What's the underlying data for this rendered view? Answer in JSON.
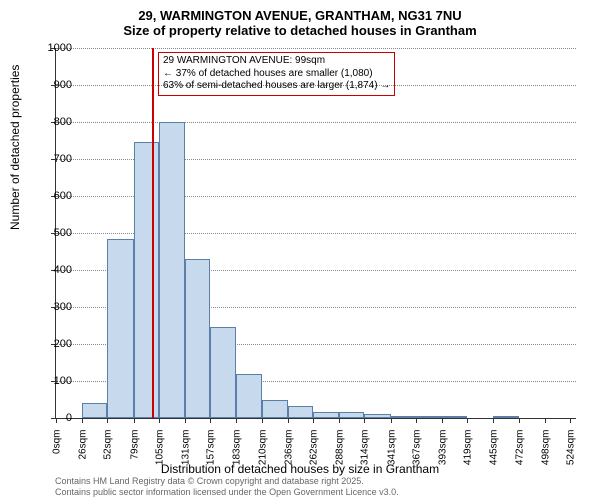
{
  "title_line1": "29, WARMINGTON AVENUE, GRANTHAM, NG31 7NU",
  "title_line2": "Size of property relative to detached houses in Grantham",
  "y_axis_title": "Number of detached properties",
  "x_axis_title": "Distribution of detached houses by size in Grantham",
  "footer_line1": "Contains HM Land Registry data © Crown copyright and database right 2025.",
  "footer_line2": "Contains public sector information licensed under the Open Government Licence v3.0.",
  "chart": {
    "type": "histogram",
    "ylim": [
      0,
      1000
    ],
    "ytick_step": 100,
    "bar_fill": "#c7d9ec",
    "bar_border": "#5b7fa8",
    "grid_color": "#888888",
    "reference_line_color": "#cc0000",
    "reference_x_value": 99,
    "x_min": 0,
    "x_max": 530,
    "xticks": [
      0,
      26,
      52,
      79,
      105,
      131,
      157,
      183,
      210,
      236,
      262,
      288,
      314,
      341,
      367,
      393,
      419,
      445,
      472,
      498,
      524
    ],
    "xtick_labels": [
      "0sqm",
      "26sqm",
      "52sqm",
      "79sqm",
      "105sqm",
      "131sqm",
      "157sqm",
      "183sqm",
      "210sqm",
      "236sqm",
      "262sqm",
      "288sqm",
      "314sqm",
      "341sqm",
      "367sqm",
      "393sqm",
      "419sqm",
      "445sqm",
      "472sqm",
      "498sqm",
      "524sqm"
    ],
    "bars": [
      {
        "x_start": 0,
        "x_end": 26,
        "value": 0
      },
      {
        "x_start": 26,
        "x_end": 52,
        "value": 40
      },
      {
        "x_start": 52,
        "x_end": 79,
        "value": 485
      },
      {
        "x_start": 79,
        "x_end": 105,
        "value": 745
      },
      {
        "x_start": 105,
        "x_end": 131,
        "value": 800
      },
      {
        "x_start": 131,
        "x_end": 157,
        "value": 430
      },
      {
        "x_start": 157,
        "x_end": 183,
        "value": 245
      },
      {
        "x_start": 183,
        "x_end": 210,
        "value": 120
      },
      {
        "x_start": 210,
        "x_end": 236,
        "value": 50
      },
      {
        "x_start": 236,
        "x_end": 262,
        "value": 32
      },
      {
        "x_start": 262,
        "x_end": 288,
        "value": 15
      },
      {
        "x_start": 288,
        "x_end": 314,
        "value": 15
      },
      {
        "x_start": 314,
        "x_end": 341,
        "value": 12
      },
      {
        "x_start": 341,
        "x_end": 367,
        "value": 3
      },
      {
        "x_start": 367,
        "x_end": 393,
        "value": 5
      },
      {
        "x_start": 393,
        "x_end": 419,
        "value": 2
      },
      {
        "x_start": 419,
        "x_end": 445,
        "value": 0
      },
      {
        "x_start": 445,
        "x_end": 472,
        "value": 2
      },
      {
        "x_start": 472,
        "x_end": 498,
        "value": 0
      },
      {
        "x_start": 498,
        "x_end": 524,
        "value": 0
      }
    ],
    "annotation": {
      "line1": "29 WARMINGTON AVENUE: 99sqm",
      "line2": "← 37% of detached houses are smaller (1,080)",
      "line3": "63% of semi-detached houses are larger (1,874) →",
      "box_border": "#cc0000",
      "fontsize": 10
    }
  }
}
